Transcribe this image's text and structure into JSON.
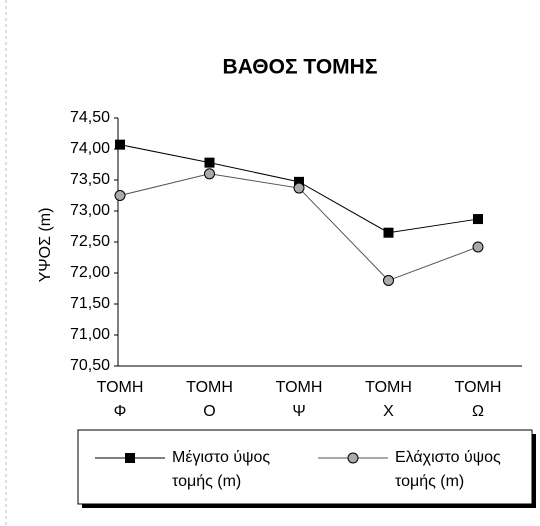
{
  "chart_data": {
    "type": "line",
    "title": "ΒΑΘΟΣ ΤΟΜΗΣ",
    "y_label": "ΥΨΟΣ (m)",
    "categories": [
      "ΤΟΜΗ Φ",
      "ΤΟΜΗ Ο",
      "ΤΟΜΗ Ψ",
      "ΤΟΜΗ Χ",
      "ΤΟΜΗ Ω"
    ],
    "series": [
      {
        "name": "Μέγιστο ύψος τομής (m)",
        "color": "#000000",
        "marker": "square",
        "values": [
          74.07,
          73.78,
          73.47,
          72.65,
          72.87
        ]
      },
      {
        "name": "Ελάχιστο ύψος τομής (m)",
        "color": "#555555",
        "marker": "circle",
        "values": [
          73.25,
          73.6,
          73.37,
          71.88,
          72.42
        ]
      }
    ],
    "ylim": [
      70.5,
      74.5
    ],
    "yticks": [
      {
        "value": 70.5,
        "label": "70,50"
      },
      {
        "value": 71,
        "label": "71,00"
      },
      {
        "value": 71.5,
        "label": "71,50"
      },
      {
        "value": 72,
        "label": "72,00"
      },
      {
        "value": 72.5,
        "label": "72,50"
      },
      {
        "value": 73,
        "label": "73,00"
      },
      {
        "value": 73.5,
        "label": "73,50"
      },
      {
        "value": 74,
        "label": "74,00"
      },
      {
        "value": 74.5,
        "label": "74,50"
      }
    ],
    "legend": "bottom",
    "grid": false
  }
}
